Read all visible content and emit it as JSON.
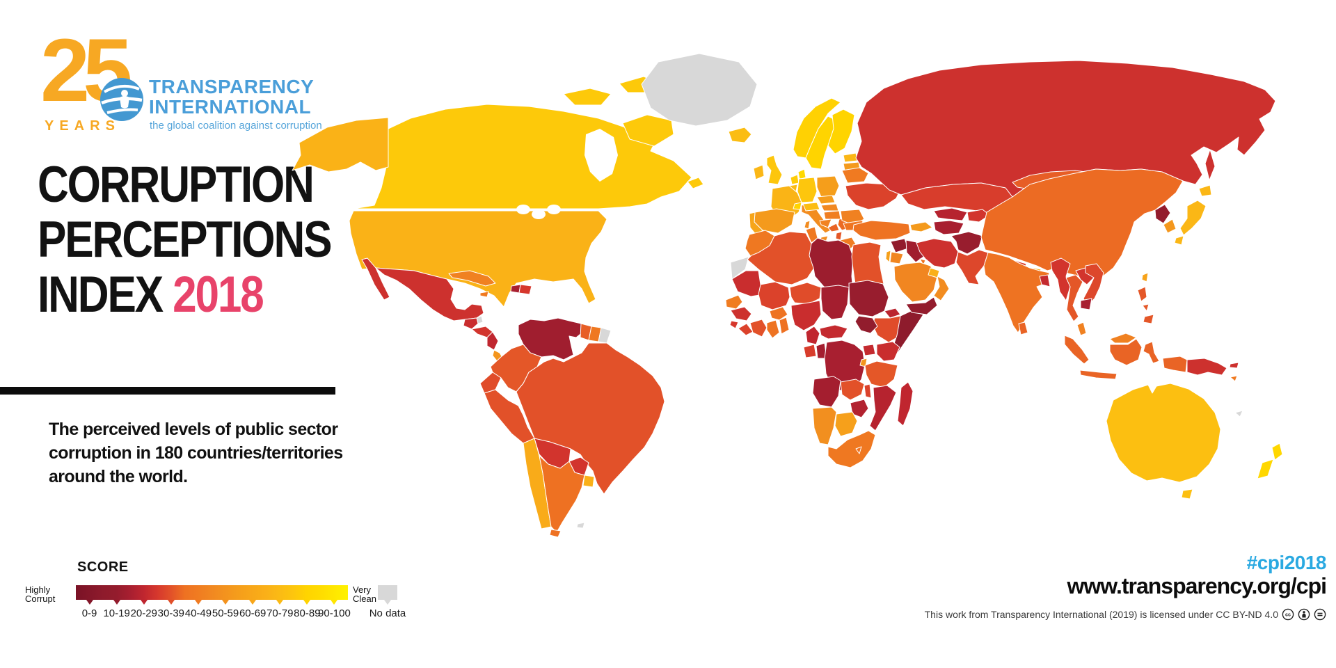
{
  "logo": {
    "years_number": "25",
    "years_label": "YEARS",
    "org_line1": "TRANSPARENCY",
    "org_line2": "INTERNATIONAL",
    "tagline": "the global coalition against corruption",
    "brand_blue": "#4A9ED9",
    "brand_gold": "#F7A823"
  },
  "title": {
    "line1": "CORRUPTION",
    "line2": "PERCEPTIONS",
    "line3_black": "INDEX ",
    "line3_accent": "2018",
    "accent_color": "#E8436A"
  },
  "subtitle": {
    "lines": [
      "The perceived levels of public sector",
      "corruption in 180 countries/territories",
      "around the world."
    ]
  },
  "legend": {
    "heading": "SCORE",
    "left_label_line1": "Highly",
    "left_label_line2": "Corrupt",
    "right_label_line1": "Very",
    "right_label_line2": "Clean",
    "no_data_label": "No data",
    "bins": [
      "0-9",
      "10-19",
      "20-29",
      "30-39",
      "40-49",
      "50-59",
      "60-69",
      "70-79",
      "80-89",
      "90-100"
    ]
  },
  "footer": {
    "hashtag": "#cpi2018",
    "hashtag_color": "#2AA9E1",
    "url": "www.transparency.org/cpi",
    "license_text": "This work from Transparency International (2019) is licensed under CC BY-ND 4.0",
    "license_icons": [
      "cc-icon",
      "attribution-icon",
      "no-derivatives-icon"
    ]
  },
  "chart_data": {
    "type": "choropleth_map",
    "score_scale": {
      "min": 0,
      "max": 100,
      "no_data_color": "#D8D8D8",
      "gradient_stops": [
        [
          0,
          "#7A1226"
        ],
        [
          10,
          "#8E1B2C"
        ],
        [
          15,
          "#941C2D"
        ],
        [
          20,
          "#A81F30"
        ],
        [
          25,
          "#C0262F"
        ],
        [
          30,
          "#D6382D"
        ],
        [
          35,
          "#E25129"
        ],
        [
          40,
          "#EE7122"
        ],
        [
          45,
          "#F07C21"
        ],
        [
          50,
          "#F18821"
        ],
        [
          55,
          "#F3931E"
        ],
        [
          60,
          "#F59E1B"
        ],
        [
          65,
          "#F8A719"
        ],
        [
          70,
          "#FAB018"
        ],
        [
          75,
          "#FBBB14"
        ],
        [
          80,
          "#FDC60D"
        ],
        [
          85,
          "#FFD400"
        ],
        [
          90,
          "#FFDC00"
        ],
        [
          100,
          "#FFF200"
        ]
      ]
    },
    "countries": [
      {
        "name": "Canada",
        "score": 81
      },
      {
        "name": "United States",
        "score": 71
      },
      {
        "name": "Greenland",
        "score": null
      },
      {
        "name": "Mexico",
        "score": 28
      },
      {
        "name": "Belize",
        "score": null
      },
      {
        "name": "Guatemala",
        "score": 27
      },
      {
        "name": "Honduras",
        "score": 29
      },
      {
        "name": "Nicaragua",
        "score": 25
      },
      {
        "name": "Costa Rica",
        "score": 56
      },
      {
        "name": "Panama",
        "score": 37
      },
      {
        "name": "Cuba",
        "score": 47
      },
      {
        "name": "Jamaica",
        "score": 44
      },
      {
        "name": "Haiti",
        "score": 20
      },
      {
        "name": "Dominican Republic",
        "score": 30
      },
      {
        "name": "Venezuela",
        "score": 18
      },
      {
        "name": "Colombia",
        "score": 36
      },
      {
        "name": "Ecuador",
        "score": 34
      },
      {
        "name": "Peru",
        "score": 35
      },
      {
        "name": "Brazil",
        "score": 35
      },
      {
        "name": "Guyana",
        "score": 37
      },
      {
        "name": "Suriname",
        "score": 43
      },
      {
        "name": "French Guiana",
        "score": null
      },
      {
        "name": "Bolivia",
        "score": 29
      },
      {
        "name": "Paraguay",
        "score": 29
      },
      {
        "name": "Chile",
        "score": 67
      },
      {
        "name": "Argentina",
        "score": 40
      },
      {
        "name": "Uruguay",
        "score": 70
      },
      {
        "name": "Falkland Islands",
        "score": null
      },
      {
        "name": "Iceland",
        "score": 76
      },
      {
        "name": "Ireland",
        "score": 73
      },
      {
        "name": "United Kingdom",
        "score": 80
      },
      {
        "name": "Norway",
        "score": 84
      },
      {
        "name": "Sweden",
        "score": 85
      },
      {
        "name": "Finland",
        "score": 85
      },
      {
        "name": "Denmark",
        "score": 88
      },
      {
        "name": "Estonia",
        "score": 73
      },
      {
        "name": "Latvia",
        "score": 58
      },
      {
        "name": "Lithuania",
        "score": 59
      },
      {
        "name": "Netherlands",
        "score": 82
      },
      {
        "name": "Belgium",
        "score": 75
      },
      {
        "name": "Germany",
        "score": 80
      },
      {
        "name": "Poland",
        "score": 60
      },
      {
        "name": "France",
        "score": 72
      },
      {
        "name": "Spain",
        "score": 58
      },
      {
        "name": "Portugal",
        "score": 64
      },
      {
        "name": "Italy",
        "score": 52
      },
      {
        "name": "Switzerland",
        "score": 85
      },
      {
        "name": "Austria",
        "score": 76
      },
      {
        "name": "Czechia",
        "score": 59
      },
      {
        "name": "Slovakia",
        "score": 50
      },
      {
        "name": "Hungary",
        "score": 46
      },
      {
        "name": "Croatia",
        "score": 48
      },
      {
        "name": "Bosnia and Herzegovina",
        "score": 38
      },
      {
        "name": "Serbia",
        "score": 39
      },
      {
        "name": "Albania",
        "score": 36
      },
      {
        "name": "Greece",
        "score": 45
      },
      {
        "name": "Romania",
        "score": 47
      },
      {
        "name": "Bulgaria",
        "score": 42
      },
      {
        "name": "Ukraine",
        "score": 32
      },
      {
        "name": "Belarus",
        "score": 44
      },
      {
        "name": "Russia",
        "score": 28
      },
      {
        "name": "Morocco",
        "score": 43
      },
      {
        "name": "Western Sahara",
        "score": null
      },
      {
        "name": "Algeria",
        "score": 35
      },
      {
        "name": "Tunisia",
        "score": 43
      },
      {
        "name": "Libya",
        "score": 17
      },
      {
        "name": "Egypt",
        "score": 35
      },
      {
        "name": "Mauritania",
        "score": 27
      },
      {
        "name": "Senegal",
        "score": 45
      },
      {
        "name": "Guinea",
        "score": 28
      },
      {
        "name": "Sierra Leone",
        "score": 30
      },
      {
        "name": "Liberia",
        "score": 32
      },
      {
        "name": "Mali",
        "score": 32
      },
      {
        "name": "Burkina Faso",
        "score": 41
      },
      {
        "name": "Côte d'Ivoire",
        "score": 35
      },
      {
        "name": "Ghana",
        "score": 41
      },
      {
        "name": "Benin",
        "score": 40
      },
      {
        "name": "Niger",
        "score": 34
      },
      {
        "name": "Nigeria",
        "score": 27
      },
      {
        "name": "Chad",
        "score": 19
      },
      {
        "name": "Sudan",
        "score": 16
      },
      {
        "name": "Eritrea",
        "score": 24
      },
      {
        "name": "Ethiopia",
        "score": 34
      },
      {
        "name": "Somalia",
        "score": 10
      },
      {
        "name": "South Sudan",
        "score": 13
      },
      {
        "name": "Cameroon",
        "score": 25
      },
      {
        "name": "Central African Republic",
        "score": 26
      },
      {
        "name": "Gabon",
        "score": 31
      },
      {
        "name": "Congo",
        "score": 19
      },
      {
        "name": "DR Congo",
        "score": 20
      },
      {
        "name": "Uganda",
        "score": 26
      },
      {
        "name": "Kenya",
        "score": 27
      },
      {
        "name": "Rwanda",
        "score": 56
      },
      {
        "name": "Tanzania",
        "score": 36
      },
      {
        "name": "Angola",
        "score": 19
      },
      {
        "name": "Zambia",
        "score": 35
      },
      {
        "name": "Malawi",
        "score": 32
      },
      {
        "name": "Mozambique",
        "score": 23
      },
      {
        "name": "Zimbabwe",
        "score": 22
      },
      {
        "name": "Namibia",
        "score": 53
      },
      {
        "name": "Botswana",
        "score": 61
      },
      {
        "name": "South Africa",
        "score": 43
      },
      {
        "name": "Lesotho",
        "score": 41
      },
      {
        "name": "Madagascar",
        "score": 25
      },
      {
        "name": "Turkey",
        "score": 41
      },
      {
        "name": "Syria",
        "score": 13
      },
      {
        "name": "Israel",
        "score": 61
      },
      {
        "name": "Jordan",
        "score": 49
      },
      {
        "name": "Iraq",
        "score": 18
      },
      {
        "name": "Kuwait",
        "score": 41
      },
      {
        "name": "Saudi Arabia",
        "score": 49
      },
      {
        "name": "Yemen",
        "score": 14
      },
      {
        "name": "Oman",
        "score": 52
      },
      {
        "name": "United Arab Emirates",
        "score": 70
      },
      {
        "name": "Georgia",
        "score": 58
      },
      {
        "name": "Iran",
        "score": 28
      },
      {
        "name": "Afghanistan",
        "score": 16
      },
      {
        "name": "Pakistan",
        "score": 33
      },
      {
        "name": "Turkmenistan",
        "score": 20
      },
      {
        "name": "Uzbekistan",
        "score": 23
      },
      {
        "name": "Kazakhstan",
        "score": 31
      },
      {
        "name": "Kyrgyzstan",
        "score": 29
      },
      {
        "name": "Mongolia",
        "score": 37
      },
      {
        "name": "China",
        "score": 39
      },
      {
        "name": "Nepal",
        "score": 31
      },
      {
        "name": "Bhutan",
        "score": 68
      },
      {
        "name": "India",
        "score": 41
      },
      {
        "name": "Bangladesh",
        "score": 26
      },
      {
        "name": "Sri Lanka",
        "score": 38
      },
      {
        "name": "Myanmar",
        "score": 29
      },
      {
        "name": "Thailand",
        "score": 36
      },
      {
        "name": "Laos",
        "score": 29
      },
      {
        "name": "Vietnam",
        "score": 33
      },
      {
        "name": "Cambodia",
        "score": 20
      },
      {
        "name": "Malaysia",
        "score": 47
      },
      {
        "name": "Indonesia",
        "score": 38
      },
      {
        "name": "Philippines",
        "score": 36
      },
      {
        "name": "Taiwan",
        "score": 63
      },
      {
        "name": "North Korea",
        "score": 14
      },
      {
        "name": "South Korea",
        "score": 57
      },
      {
        "name": "Japan",
        "score": 73
      },
      {
        "name": "Papua New Guinea",
        "score": 28
      },
      {
        "name": "Solomon Islands",
        "score": 44
      },
      {
        "name": "Australia",
        "score": 77
      },
      {
        "name": "New Zealand",
        "score": 87
      },
      {
        "name": "New Caledonia",
        "score": null
      }
    ]
  }
}
